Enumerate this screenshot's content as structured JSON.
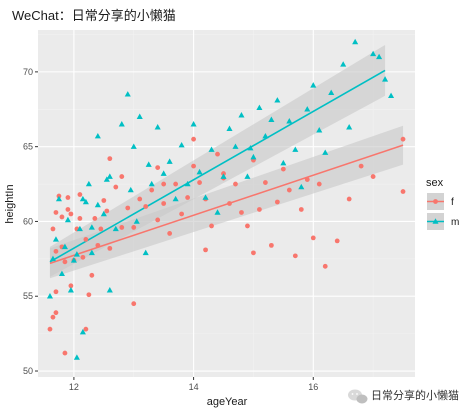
{
  "header": {
    "title": "WeChat：日常分享的小懒猫"
  },
  "watermark": {
    "text": "日常分享的小懒猫",
    "icon": "wechat-icon"
  },
  "colors": {
    "panel_bg": "#ebebeb",
    "grid_major": "#ffffff",
    "grid_minor": "#f2f2f2",
    "band": "#c8c8c8",
    "f": "#F8766D",
    "m": "#00BFC4"
  },
  "chart_data": {
    "type": "scatter",
    "title": "WeChat：日常分享的小懒猫",
    "xlabel": "ageYear",
    "ylabel": "heightIn",
    "xlim": [
      11.4,
      17.7
    ],
    "ylim": [
      49.6,
      72.8
    ],
    "xticks": [
      12,
      14,
      16
    ],
    "yticks": [
      50,
      55,
      60,
      65,
      70
    ],
    "grid": true,
    "legend": {
      "title": "sex",
      "position": "right",
      "entries": [
        "f",
        "m"
      ]
    },
    "series": [
      {
        "name": "f",
        "marker": "circle",
        "color": "#F8766D",
        "fit": {
          "x": [
            11.6,
            17.5
          ],
          "y": [
            57.2,
            65.1
          ],
          "se_lo": [
            56.2,
            63.8
          ],
          "se_hi": [
            58.2,
            66.4
          ]
        },
        "points": [
          [
            11.6,
            52.8
          ],
          [
            11.65,
            53.6
          ],
          [
            11.7,
            53.9
          ],
          [
            11.7,
            55.3
          ],
          [
            11.7,
            58.0
          ],
          [
            11.65,
            59.5
          ],
          [
            11.7,
            60.6
          ],
          [
            11.75,
            61.7
          ],
          [
            11.8,
            60.3
          ],
          [
            11.8,
            58.3
          ],
          [
            11.85,
            57.3
          ],
          [
            11.9,
            60.8
          ],
          [
            11.9,
            61.6
          ],
          [
            11.95,
            55.7
          ],
          [
            12.0,
            57.4
          ],
          [
            12.05,
            59.5
          ],
          [
            12.1,
            60.2
          ],
          [
            12.1,
            61.8
          ],
          [
            12.15,
            57.6
          ],
          [
            11.85,
            51.2
          ],
          [
            12.2,
            52.8
          ],
          [
            12.25,
            55.1
          ],
          [
            12.3,
            56.4
          ],
          [
            12.4,
            58.4
          ],
          [
            12.45,
            59.5
          ],
          [
            12.5,
            61.4
          ],
          [
            12.55,
            60.7
          ],
          [
            12.6,
            64.2
          ],
          [
            12.6,
            58.2
          ],
          [
            12.7,
            62.3
          ],
          [
            12.8,
            59.6
          ],
          [
            12.9,
            60.9
          ],
          [
            13.0,
            54.5
          ],
          [
            13.0,
            59.6
          ],
          [
            13.1,
            61.5
          ],
          [
            13.2,
            61.0
          ],
          [
            13.3,
            62.1
          ],
          [
            13.4,
            63.6
          ],
          [
            13.4,
            60.1
          ],
          [
            13.5,
            61.2
          ],
          [
            13.6,
            59.2
          ],
          [
            13.7,
            62.5
          ],
          [
            13.8,
            60.5
          ],
          [
            13.9,
            61.6
          ],
          [
            14.0,
            63.7
          ],
          [
            14.1,
            62.6
          ],
          [
            14.2,
            61.5
          ],
          [
            14.2,
            58.1
          ],
          [
            14.3,
            59.7
          ],
          [
            14.4,
            64.5
          ],
          [
            14.5,
            63.2
          ],
          [
            14.6,
            61.2
          ],
          [
            14.7,
            62.5
          ],
          [
            14.8,
            60.6
          ],
          [
            14.9,
            59.7
          ],
          [
            15.0,
            64.1
          ],
          [
            15.1,
            60.8
          ],
          [
            15.2,
            62.6
          ],
          [
            15.3,
            58.4
          ],
          [
            15.4,
            61.3
          ],
          [
            15.5,
            63.5
          ],
          [
            15.6,
            62.1
          ],
          [
            15.7,
            57.7
          ],
          [
            15.8,
            60.8
          ],
          [
            15.9,
            62.8
          ],
          [
            16.0,
            58.9
          ],
          [
            16.1,
            62.5
          ],
          [
            16.2,
            57.0
          ],
          [
            16.4,
            58.7
          ],
          [
            16.6,
            61.5
          ],
          [
            16.8,
            63.7
          ],
          [
            17.0,
            63.0
          ],
          [
            17.5,
            62.0
          ],
          [
            17.5,
            65.5
          ],
          [
            12.35,
            60.2
          ],
          [
            12.8,
            63.0
          ],
          [
            13.5,
            62.5
          ],
          [
            14.5,
            62.9
          ],
          [
            15.0,
            57.9
          ],
          [
            14.0,
            65.5
          ],
          [
            12.2,
            58.8
          ],
          [
            11.95,
            60.5
          ]
        ]
      },
      {
        "name": "m",
        "marker": "triangle",
        "color": "#00BFC4",
        "fit": {
          "x": [
            11.6,
            17.2
          ],
          "y": [
            57.3,
            70.1
          ],
          "se_lo": [
            56.3,
            68.4
          ],
          "se_hi": [
            58.3,
            71.8
          ]
        },
        "points": [
          [
            11.6,
            55.0
          ],
          [
            11.65,
            57.5
          ],
          [
            11.7,
            58.8
          ],
          [
            11.75,
            61.5
          ],
          [
            11.8,
            56.5
          ],
          [
            11.85,
            58.3
          ],
          [
            11.9,
            60.1
          ],
          [
            11.95,
            55.4
          ],
          [
            12.0,
            57.4
          ],
          [
            12.05,
            50.9
          ],
          [
            12.1,
            59.5
          ],
          [
            12.15,
            52.6
          ],
          [
            12.2,
            61.3
          ],
          [
            12.25,
            62.5
          ],
          [
            12.3,
            59.6
          ],
          [
            12.4,
            61.1
          ],
          [
            12.4,
            65.7
          ],
          [
            12.5,
            60.5
          ],
          [
            12.55,
            62.8
          ],
          [
            12.6,
            63.0
          ],
          [
            12.7,
            59.5
          ],
          [
            12.8,
            66.5
          ],
          [
            12.9,
            68.5
          ],
          [
            12.95,
            62.1
          ],
          [
            13.0,
            65.0
          ],
          [
            13.05,
            60.0
          ],
          [
            13.1,
            67.0
          ],
          [
            13.2,
            57.9
          ],
          [
            13.3,
            62.5
          ],
          [
            13.4,
            66.3
          ],
          [
            13.5,
            63.2
          ],
          [
            13.6,
            64.0
          ],
          [
            13.7,
            61.5
          ],
          [
            13.8,
            65.1
          ],
          [
            13.9,
            62.5
          ],
          [
            14.0,
            66.5
          ],
          [
            14.1,
            63.3
          ],
          [
            14.2,
            61.6
          ],
          [
            14.3,
            64.8
          ],
          [
            14.4,
            60.6
          ],
          [
            14.5,
            63.0
          ],
          [
            14.6,
            66.2
          ],
          [
            14.7,
            65.0
          ],
          [
            14.8,
            67.1
          ],
          [
            14.9,
            63.0
          ],
          [
            15.0,
            64.3
          ],
          [
            15.1,
            67.6
          ],
          [
            15.2,
            65.7
          ],
          [
            15.3,
            66.8
          ],
          [
            15.4,
            68.1
          ],
          [
            15.5,
            63.9
          ],
          [
            15.6,
            66.7
          ],
          [
            15.7,
            64.8
          ],
          [
            15.8,
            62.3
          ],
          [
            15.9,
            67.5
          ],
          [
            16.0,
            69.1
          ],
          [
            16.1,
            66.1
          ],
          [
            16.2,
            64.6
          ],
          [
            16.3,
            68.6
          ],
          [
            16.5,
            70.5
          ],
          [
            16.6,
            66.3
          ],
          [
            16.7,
            72.0
          ],
          [
            17.0,
            71.2
          ],
          [
            17.2,
            69.5
          ],
          [
            17.3,
            68.4
          ],
          [
            17.1,
            71.0
          ],
          [
            12.05,
            57.8
          ],
          [
            12.3,
            57.9
          ],
          [
            12.6,
            55.4
          ],
          [
            12.15,
            61.5
          ],
          [
            13.25,
            63.8
          ],
          [
            14.95,
            64.9
          ]
        ]
      }
    ]
  }
}
